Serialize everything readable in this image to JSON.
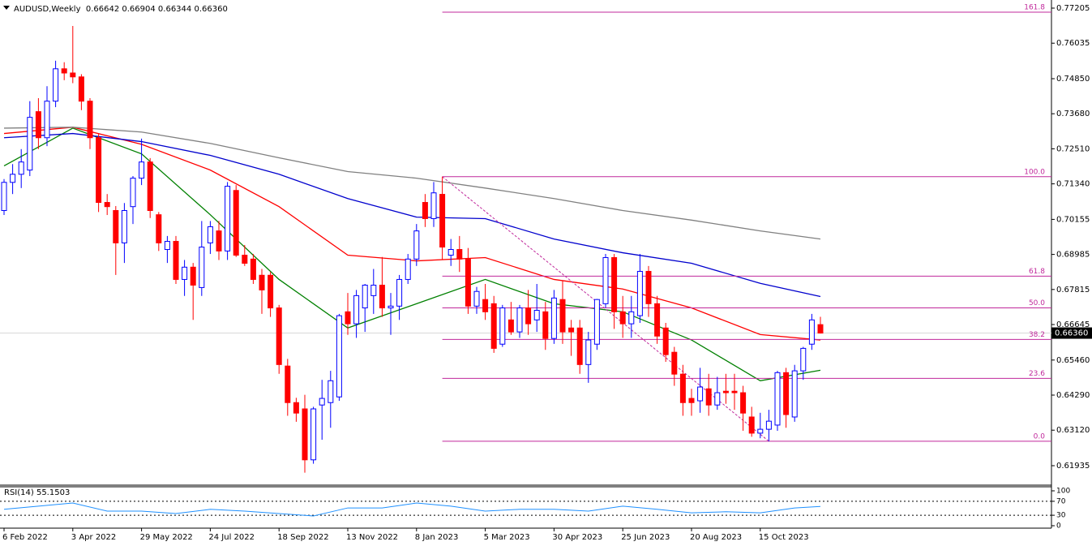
{
  "chart_data": {
    "type": "candlestick",
    "title": "AUDUSD,Weekly  0.66642 0.66904 0.66344 0.66360",
    "categories": [
      "6 Feb 2022",
      null,
      null,
      null,
      null,
      null,
      null,
      null,
      "3 Apr 2022",
      null,
      null,
      null,
      null,
      null,
      null,
      null,
      "29 May 2022",
      null,
      null,
      null,
      null,
      null,
      null,
      null,
      "24 Jul 2022",
      null,
      null,
      null,
      null,
      null,
      null,
      null,
      "18 Sep 2022",
      null,
      null,
      null,
      null,
      null,
      null,
      null,
      "13 Nov 2022",
      null,
      null,
      null,
      null,
      null,
      null,
      null,
      "8 Jan 2023",
      null,
      null,
      null,
      null,
      null,
      null,
      null,
      "5 Mar 2023",
      null,
      null,
      null,
      null,
      null,
      null,
      null,
      "30 Apr 2023",
      null,
      null,
      null,
      null,
      null,
      null,
      null,
      "25 Jun 2023",
      null,
      null,
      null,
      null,
      null,
      null,
      null,
      "20 Aug 2023",
      null,
      null,
      null,
      null,
      null,
      null,
      null,
      "15 Oct 2023",
      null,
      null,
      null,
      null,
      null,
      null,
      null
    ],
    "candles": [
      [
        0.7045,
        0.715,
        0.703,
        0.7139
      ],
      [
        0.7139,
        0.72,
        0.71,
        0.7166
      ],
      [
        0.7166,
        0.725,
        0.712,
        0.7207
      ],
      [
        0.718,
        0.741,
        0.716,
        0.7356
      ],
      [
        0.7375,
        0.742,
        0.725,
        0.7288
      ],
      [
        0.7288,
        0.746,
        0.726,
        0.741
      ],
      [
        0.741,
        0.7545,
        0.739,
        0.7518
      ],
      [
        0.7518,
        0.754,
        0.748,
        0.7504
      ],
      [
        0.7504,
        0.7661,
        0.747,
        0.7491
      ],
      [
        0.7491,
        0.75,
        0.738,
        0.741
      ],
      [
        0.741,
        0.742,
        0.725,
        0.7288
      ],
      [
        0.7288,
        0.73,
        0.704,
        0.7072
      ],
      [
        0.7072,
        0.71,
        0.703,
        0.7058
      ],
      [
        0.7045,
        0.706,
        0.683,
        0.6937
      ],
      [
        0.6937,
        0.707,
        0.687,
        0.7045
      ],
      [
        0.7058,
        0.716,
        0.7,
        0.7153
      ],
      [
        0.7153,
        0.7285,
        0.713,
        0.7207
      ],
      [
        0.7207,
        0.722,
        0.702,
        0.7045
      ],
      [
        0.7031,
        0.704,
        0.691,
        0.6937
      ],
      [
        0.6915,
        0.696,
        0.687,
        0.6942
      ],
      [
        0.6942,
        0.696,
        0.68,
        0.6815
      ],
      [
        0.6815,
        0.688,
        0.676,
        0.6856
      ],
      [
        0.6856,
        0.687,
        0.668,
        0.6796
      ],
      [
        0.6788,
        0.701,
        0.676,
        0.6923
      ],
      [
        0.6937,
        0.701,
        0.69,
        0.6991
      ],
      [
        0.6977,
        0.701,
        0.688,
        0.691
      ],
      [
        0.691,
        0.714,
        0.688,
        0.7126
      ],
      [
        0.7112,
        0.713,
        0.689,
        0.6896
      ],
      [
        0.6896,
        0.693,
        0.686,
        0.6869
      ],
      [
        0.6883,
        0.69,
        0.68,
        0.6815
      ],
      [
        0.6829,
        0.685,
        0.67,
        0.678
      ],
      [
        0.6829,
        0.684,
        0.669,
        0.672
      ],
      [
        0.672,
        0.673,
        0.65,
        0.6531
      ],
      [
        0.6526,
        0.655,
        0.636,
        0.6404
      ],
      [
        0.6404,
        0.642,
        0.634,
        0.6369
      ],
      [
        0.6383,
        0.643,
        0.617,
        0.6213
      ],
      [
        0.6213,
        0.639,
        0.62,
        0.6383
      ],
      [
        0.6396,
        0.648,
        0.628,
        0.6418
      ],
      [
        0.6404,
        0.651,
        0.632,
        0.6477
      ],
      [
        0.6423,
        0.67,
        0.641,
        0.6694
      ],
      [
        0.6707,
        0.677,
        0.663,
        0.6667
      ],
      [
        0.6667,
        0.678,
        0.662,
        0.6761
      ],
      [
        0.672,
        0.68,
        0.664,
        0.6796
      ],
      [
        0.6761,
        0.685,
        0.67,
        0.6796
      ],
      [
        0.6796,
        0.689,
        0.669,
        0.672
      ],
      [
        0.672,
        0.677,
        0.663,
        0.6726
      ],
      [
        0.6726,
        0.683,
        0.668,
        0.6815
      ],
      [
        0.6815,
        0.69,
        0.68,
        0.6883
      ],
      [
        0.6883,
        0.7,
        0.686,
        0.6977
      ],
      [
        0.7072,
        0.71,
        0.699,
        0.7018
      ],
      [
        0.7018,
        0.714,
        0.699,
        0.7104
      ],
      [
        0.7099,
        0.7158,
        0.688,
        0.6923
      ],
      [
        0.6896,
        0.695,
        0.686,
        0.6915
      ],
      [
        0.6915,
        0.696,
        0.684,
        0.6883
      ],
      [
        0.6883,
        0.692,
        0.67,
        0.6726
      ],
      [
        0.6726,
        0.679,
        0.67,
        0.6775
      ],
      [
        0.6748,
        0.68,
        0.668,
        0.6707
      ],
      [
        0.6734,
        0.676,
        0.657,
        0.6585
      ],
      [
        0.6599,
        0.673,
        0.659,
        0.672
      ],
      [
        0.668,
        0.674,
        0.663,
        0.664
      ],
      [
        0.664,
        0.673,
        0.662,
        0.672
      ],
      [
        0.672,
        0.678,
        0.663,
        0.6667
      ],
      [
        0.668,
        0.68,
        0.664,
        0.6712
      ],
      [
        0.6707,
        0.674,
        0.658,
        0.6618
      ],
      [
        0.6618,
        0.678,
        0.66,
        0.6753
      ],
      [
        0.6748,
        0.681,
        0.66,
        0.664
      ],
      [
        0.6653,
        0.668,
        0.656,
        0.664
      ],
      [
        0.6653,
        0.668,
        0.65,
        0.6531
      ],
      [
        0.6531,
        0.664,
        0.647,
        0.6613
      ],
      [
        0.6599,
        0.675,
        0.658,
        0.6748
      ],
      [
        0.6734,
        0.69,
        0.672,
        0.6888
      ],
      [
        0.6888,
        0.69,
        0.665,
        0.6707
      ],
      [
        0.6707,
        0.676,
        0.662,
        0.6667
      ],
      [
        0.6667,
        0.676,
        0.662,
        0.6707
      ],
      [
        0.6694,
        0.69,
        0.667,
        0.6842
      ],
      [
        0.6842,
        0.686,
        0.669,
        0.6734
      ],
      [
        0.6734,
        0.676,
        0.66,
        0.6626
      ],
      [
        0.6653,
        0.667,
        0.654,
        0.6564
      ],
      [
        0.6572,
        0.659,
        0.646,
        0.6499
      ],
      [
        0.6499,
        0.653,
        0.636,
        0.6404
      ],
      [
        0.6418,
        0.645,
        0.636,
        0.6404
      ],
      [
        0.641,
        0.652,
        0.637,
        0.6456
      ],
      [
        0.645,
        0.65,
        0.636,
        0.6396
      ],
      [
        0.6396,
        0.649,
        0.638,
        0.6437
      ],
      [
        0.6442,
        0.65,
        0.64,
        0.6437
      ],
      [
        0.6442,
        0.65,
        0.638,
        0.6437
      ],
      [
        0.6437,
        0.646,
        0.631,
        0.6369
      ],
      [
        0.6356,
        0.639,
        0.629,
        0.6302
      ],
      [
        0.6302,
        0.637,
        0.6285,
        0.6315
      ],
      [
        0.6315,
        0.638,
        0.6275,
        0.6342
      ],
      [
        0.6329,
        0.651,
        0.631,
        0.6504
      ],
      [
        0.6504,
        0.652,
        0.632,
        0.6364
      ],
      [
        0.6356,
        0.653,
        0.634,
        0.651
      ],
      [
        0.651,
        0.659,
        0.648,
        0.6585
      ],
      [
        0.6599,
        0.67,
        0.658,
        0.668
      ],
      [
        0.66642,
        0.66904,
        0.66344,
        0.6636
      ]
    ],
    "bull_color": "#0000ff",
    "bear_color": "#ff0000",
    "ylim": [
      0.61312,
      0.77476
    ],
    "yticks": [
      0.77205,
      0.76035,
      {
        "value": 0.7485,
        "label": "0.74850"
      },
      {
        "value": 0.7368,
        "label": "0.73680"
      },
      {
        "value": 0.7251,
        "label": "0.72510"
      },
      {
        "value": 0.7134,
        "label": "0.71340"
      },
      0.70155,
      0.68985,
      0.67815,
      0.66645,
      {
        "value": 0.6546,
        "label": "0.65460"
      },
      {
        "value": 0.6429,
        "label": "0.64290"
      },
      {
        "value": 0.6312,
        "label": "0.63120"
      },
      0.61935
    ],
    "last_price": {
      "value": 0.6636,
      "label": "0.66360"
    },
    "moving_averages": [
      {
        "color": "#008000",
        "x": [
          0,
          8,
          16,
          24,
          32,
          40,
          48,
          56,
          64,
          72,
          80,
          88,
          95
        ],
        "values": [
          0.7194,
          0.732,
          0.7234,
          0.7031,
          0.6815,
          0.6653,
          0.6734,
          0.6815,
          0.6734,
          0.6707,
          0.6613,
          0.6477,
          0.6512
        ]
      },
      {
        "color": "#ff0000",
        "x": [
          0,
          8,
          16,
          24,
          32,
          40,
          48,
          56,
          64,
          72,
          80,
          88,
          95
        ],
        "values": [
          0.7302,
          0.7323,
          0.7266,
          0.718,
          0.7058,
          0.6896,
          0.6877,
          0.6888,
          0.6815,
          0.6783,
          0.672,
          0.6631,
          0.6613
        ]
      },
      {
        "color": "#0000cd",
        "x": [
          0,
          8,
          16,
          24,
          32,
          40,
          48,
          56,
          64,
          72,
          80,
          88,
          95
        ],
        "values": [
          0.7288,
          0.7302,
          0.7275,
          0.7229,
          0.7166,
          0.7085,
          0.7023,
          0.7018,
          0.695,
          0.6904,
          0.6869,
          0.6802,
          0.6758
        ]
      },
      {
        "color": "#808080",
        "x": [
          0,
          8,
          16,
          24,
          32,
          40,
          48,
          56,
          64,
          72,
          80,
          88,
          95
        ],
        "values": [
          0.732,
          0.7323,
          0.7307,
          0.7269,
          0.7221,
          0.7175,
          0.7153,
          0.712,
          0.7085,
          0.7045,
          0.7013,
          0.6977,
          0.695
        ]
      }
    ],
    "fib": {
      "color": "#c0289b",
      "levels": [
        {
          "label": "161.8",
          "price": 0.7707
        },
        {
          "label": "100.0",
          "price": 0.7158
        },
        {
          "label": "61.8",
          "price": 0.6826
        },
        {
          "label": "50.0",
          "price": 0.672
        },
        {
          "label": "38.2",
          "price": 0.6615
        },
        {
          "label": "23.6",
          "price": 0.6485
        },
        {
          "label": "0.0",
          "price": 0.6275
        }
      ]
    },
    "rsi": {
      "title": "RSI(14) 55.1503",
      "color": "#1e90ff",
      "ylim": [
        0,
        100
      ],
      "yticks": [
        100,
        70,
        30,
        0
      ],
      "levels": [
        70,
        30
      ],
      "x": [
        0,
        4,
        8,
        12,
        16,
        20,
        24,
        28,
        32,
        36,
        40,
        44,
        48,
        52,
        56,
        60,
        64,
        68,
        72,
        76,
        80,
        84,
        88,
        92,
        95
      ],
      "values": [
        47,
        56,
        65,
        42,
        42,
        35,
        47,
        42,
        35,
        28,
        51,
        51,
        65,
        56,
        42,
        47,
        47,
        42,
        56,
        47,
        37,
        40,
        37,
        51,
        55.15
      ]
    }
  }
}
